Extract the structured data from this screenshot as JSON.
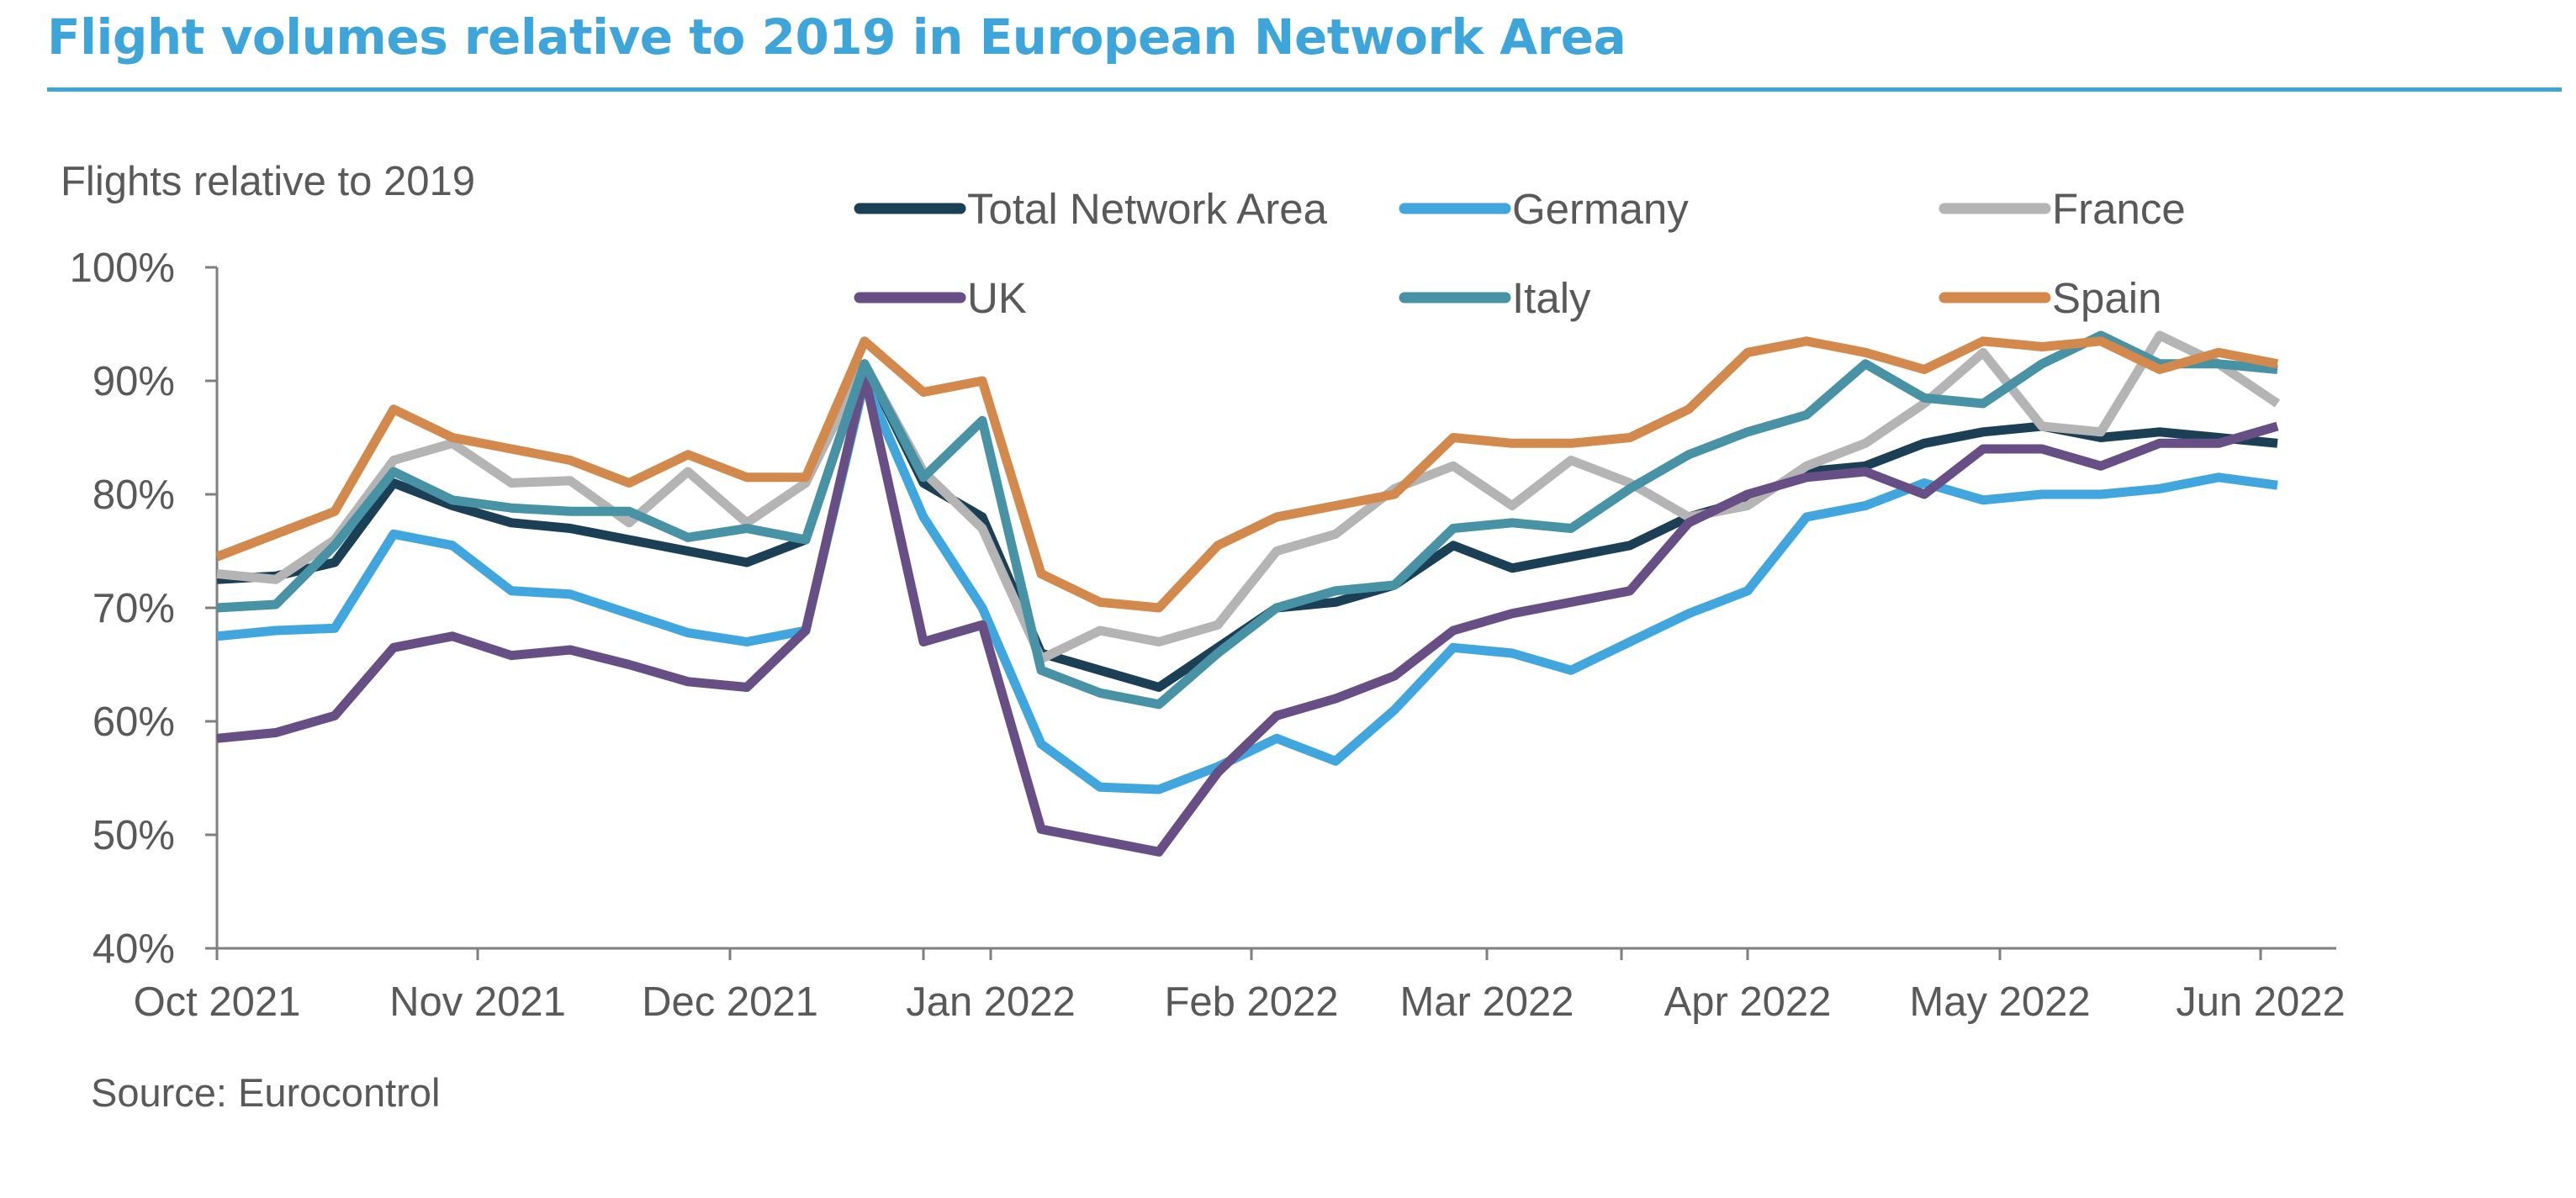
{
  "page": {
    "title": "Flight volumes relative to 2019 in European Network Area",
    "source": "Source: Eurocontrol"
  },
  "chart_data": {
    "type": "line",
    "ylabel": "Flights relative to 2019",
    "y_unit": "%",
    "ylim": [
      40,
      100
    ],
    "y_ticks": [
      40,
      50,
      60,
      70,
      80,
      90,
      100
    ],
    "y_tick_labels": [
      "40%",
      "50%",
      "60%",
      "70%",
      "80%",
      "90%",
      "100%"
    ],
    "x_start": "2021-10-01",
    "x_step_days": 7,
    "x_end": "2022-06-10",
    "x_tick_dates": [
      "2021-10-01",
      "2021-11-01",
      "2021-12-01",
      "2022-01-01",
      "2022-02-01",
      "2022-03-01",
      "2022-04-01",
      "2022-05-01",
      "2022-06-01",
      "2021-12-24",
      "2022-03-17"
    ],
    "x_tick_labels": [
      "Oct 2021",
      "Nov 2021",
      "Dec 2021",
      "Jan 2022",
      "Feb 2022",
      "Mar 2022",
      "Apr 2022",
      "May 2022",
      "Jun 2022",
      "",
      ""
    ],
    "legend_position": "top",
    "grid": false,
    "series": [
      {
        "name": "Total Network Area",
        "color": "#1b3f55",
        "values": [
          72.5,
          72.8,
          74.0,
          81.0,
          79.0,
          77.5,
          77.0,
          76.0,
          75.0,
          74.0,
          76.0,
          91.5,
          81.0,
          78.0,
          66.0,
          64.5,
          63.0,
          66.5,
          70.0,
          70.5,
          72.0,
          75.5,
          73.5,
          74.5,
          75.5,
          78.0,
          79.5,
          82.0,
          82.5,
          84.5,
          85.5,
          86.0,
          85.0,
          85.5,
          85.0,
          84.5
        ]
      },
      {
        "name": "Germany",
        "color": "#41a6dd",
        "values": [
          67.5,
          68.0,
          68.2,
          76.5,
          75.5,
          71.5,
          71.2,
          69.5,
          67.8,
          67.0,
          68.0,
          90.0,
          78.0,
          70.0,
          58.0,
          54.2,
          54.0,
          56.0,
          58.5,
          56.5,
          61.0,
          66.5,
          66.0,
          64.5,
          67.0,
          69.5,
          71.5,
          78.0,
          79.0,
          81.0,
          79.5,
          80.0,
          80.0,
          80.5,
          81.5,
          80.8
        ]
      },
      {
        "name": "France",
        "color": "#b4b4b4",
        "values": [
          73.0,
          72.5,
          76.0,
          83.0,
          84.5,
          81.0,
          81.2,
          77.5,
          82.0,
          77.5,
          81.0,
          91.5,
          82.0,
          77.0,
          65.5,
          68.0,
          67.0,
          68.5,
          75.0,
          76.5,
          80.5,
          82.5,
          79.0,
          83.0,
          81.0,
          78.0,
          79.0,
          82.5,
          84.5,
          88.0,
          92.5,
          86.0,
          85.5,
          94.0,
          91.5,
          88.0
        ]
      },
      {
        "name": "UK",
        "color": "#674e85",
        "values": [
          58.5,
          59.0,
          60.5,
          66.5,
          67.5,
          65.8,
          66.3,
          65.0,
          63.5,
          63.0,
          68.0,
          90.5,
          67.0,
          68.5,
          50.5,
          49.5,
          48.5,
          55.5,
          60.5,
          62.0,
          64.0,
          68.0,
          69.5,
          70.5,
          71.5,
          77.5,
          80.0,
          81.5,
          82.0,
          80.0,
          84.0,
          84.0,
          82.5,
          84.5,
          84.5,
          86.0
        ]
      },
      {
        "name": "Italy",
        "color": "#4892a6",
        "values": [
          70.0,
          70.3,
          75.5,
          82.0,
          79.5,
          78.8,
          78.5,
          78.5,
          76.2,
          77.0,
          76.0,
          91.5,
          81.5,
          86.5,
          64.5,
          62.5,
          61.5,
          66.0,
          70.0,
          71.5,
          72.0,
          77.0,
          77.5,
          77.0,
          80.5,
          83.5,
          85.5,
          87.0,
          91.5,
          88.5,
          88.0,
          91.5,
          94.0,
          91.5,
          91.5,
          91.0
        ]
      },
      {
        "name": "Spain",
        "color": "#d2894b",
        "values": [
          74.5,
          76.5,
          78.5,
          87.5,
          85.0,
          84.0,
          83.0,
          81.0,
          83.5,
          81.5,
          81.5,
          93.5,
          89.0,
          90.0,
          73.0,
          70.5,
          70.0,
          75.5,
          78.0,
          79.0,
          80.0,
          85.0,
          84.5,
          84.5,
          85.0,
          87.5,
          92.5,
          93.5,
          92.5,
          91.0,
          93.5,
          93.0,
          93.5,
          91.0,
          92.5,
          91.5
        ]
      }
    ]
  }
}
